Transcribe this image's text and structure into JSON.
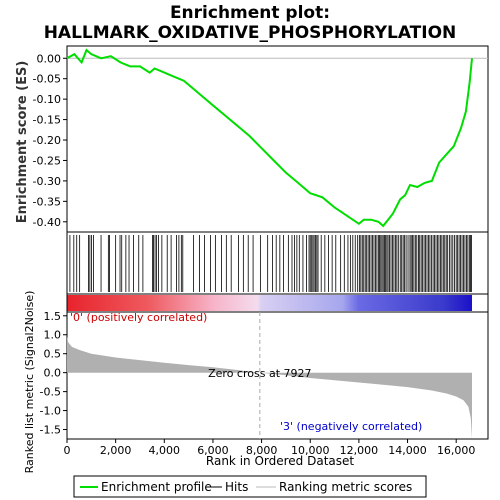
{
  "chart_data": {
    "type": "line",
    "title_line1": "Enrichment plot:",
    "title_line2": "HALLMARK_OXIDATIVE_PHOSPHORYLATION",
    "es_ylabel": "Enrichment score (ES)",
    "es_yticks": [
      "0.00",
      "-0.05",
      "-0.10",
      "-0.15",
      "-0.20",
      "-0.25",
      "-0.30",
      "-0.35",
      "-0.40"
    ],
    "es_ylim": [
      -0.425,
      0.03
    ],
    "x_max": 16650,
    "es_curve": {
      "x": [
        0,
        300,
        600,
        800,
        1000,
        1400,
        1800,
        2200,
        2600,
        3000,
        3400,
        3600,
        4000,
        4400,
        4800,
        5200,
        5600,
        6000,
        6500,
        7000,
        7500,
        8000,
        8500,
        9000,
        9500,
        10000,
        10500,
        11000,
        11500,
        12000,
        12200,
        12500,
        12800,
        13000,
        13200,
        13400,
        13700,
        13900,
        14100,
        14400,
        14700,
        15000,
        15300,
        15600,
        15900,
        16200,
        16400,
        16550,
        16650
      ],
      "y": [
        0.0,
        0.01,
        -0.01,
        0.02,
        0.01,
        0.0,
        0.005,
        -0.01,
        -0.02,
        -0.02,
        -0.035,
        -0.025,
        -0.035,
        -0.045,
        -0.055,
        -0.075,
        -0.095,
        -0.115,
        -0.14,
        -0.165,
        -0.19,
        -0.22,
        -0.25,
        -0.28,
        -0.305,
        -0.33,
        -0.34,
        -0.365,
        -0.385,
        -0.405,
        -0.395,
        -0.395,
        -0.4,
        -0.41,
        -0.395,
        -0.38,
        -0.345,
        -0.335,
        -0.31,
        -0.315,
        -0.305,
        -0.3,
        -0.255,
        -0.235,
        -0.215,
        -0.17,
        -0.13,
        -0.06,
        0.0
      ]
    },
    "hits_ticks_x": [
      120,
      280,
      400,
      520,
      880,
      940,
      1010,
      1090,
      1400,
      1700,
      1750,
      2000,
      2180,
      2250,
      2420,
      2550,
      2730,
      2950,
      3120,
      3520,
      3560,
      3620,
      3680,
      3760,
      3900,
      4120,
      4280,
      4500,
      4600,
      4700,
      4760,
      5200,
      5450,
      5650,
      5900,
      6100,
      6350,
      6550,
      6750,
      7050,
      7250,
      7450,
      7650,
      7950,
      8250,
      8450,
      8600,
      8750,
      8900,
      9100,
      9250,
      9350,
      9450,
      9550,
      9700,
      9850,
      9950,
      10000,
      10060,
      10110,
      10160,
      10220,
      10270,
      10320,
      10450,
      10600,
      10750,
      10900,
      11050,
      11250,
      11400,
      11550,
      11650,
      11750,
      11850,
      11950,
      12020,
      12080,
      12140,
      12200,
      12260,
      12320,
      12380,
      12440,
      12500,
      12560,
      12620,
      12680,
      12740,
      12800,
      12850,
      12900,
      12950,
      13000,
      13050,
      13100,
      13150,
      13200,
      13260,
      13320,
      13380,
      13440,
      13500,
      13560,
      13620,
      13700,
      13760,
      13820,
      13880,
      13940,
      14020,
      14100,
      14150,
      14200,
      14260,
      14320,
      14380,
      14450,
      14500,
      14560,
      14620,
      14680,
      14740,
      14800,
      14860,
      14920,
      14980,
      15050,
      15110,
      15170,
      15230,
      15290,
      15350,
      15410,
      15470,
      15530,
      15590,
      15650,
      15720,
      15790,
      15860,
      15930,
      16000,
      16060,
      16120,
      16180,
      16240,
      16300,
      16360,
      16420,
      16480,
      16540,
      16590,
      16630
    ],
    "rank_ylabel": "Ranked list metric (Signal2Noise)",
    "rank_yticks": [
      "1.5",
      "1.0",
      "0.5",
      "0.0",
      "-0.5",
      "-1.0",
      "-1.5"
    ],
    "rank_ylim": [
      -1.75,
      1.6
    ],
    "rank_metric": {
      "x": [
        0,
        50,
        200,
        500,
        1000,
        2000,
        3000,
        4000,
        5000,
        6000,
        7000,
        7927,
        9000,
        10000,
        11000,
        12000,
        13000,
        14000,
        15000,
        15600,
        16000,
        16300,
        16500,
        16600,
        16650
      ],
      "y": [
        0.95,
        0.8,
        0.68,
        0.6,
        0.5,
        0.4,
        0.33,
        0.26,
        0.2,
        0.14,
        0.07,
        0.0,
        -0.07,
        -0.14,
        -0.2,
        -0.26,
        -0.32,
        -0.38,
        -0.47,
        -0.55,
        -0.63,
        -0.73,
        -0.9,
        -1.2,
        -1.75
      ]
    },
    "xticks": [
      "0",
      "2,000",
      "4,000",
      "6,000",
      "8,000",
      "10,000",
      "12,000",
      "14,000",
      "16,000"
    ],
    "xlabel": "Rank in Ordered Dataset",
    "zero_cross": 7927,
    "zero_cross_label": "Zero cross at 7927",
    "pos_label": "'0' (positively correlated)",
    "neg_label": "'3' (negatively correlated)",
    "legend": [
      {
        "label": "Enrichment profile",
        "color": "#00dd00"
      },
      {
        "label": "Hits",
        "color": "#000000"
      },
      {
        "label": "Ranking metric scores",
        "color": "#bbbbbb"
      }
    ],
    "colors": {
      "es_line": "#00dd00",
      "pos_label": "#cc0000",
      "neg_label": "#0000cc",
      "metric_fill": "#b0b0b0"
    }
  }
}
